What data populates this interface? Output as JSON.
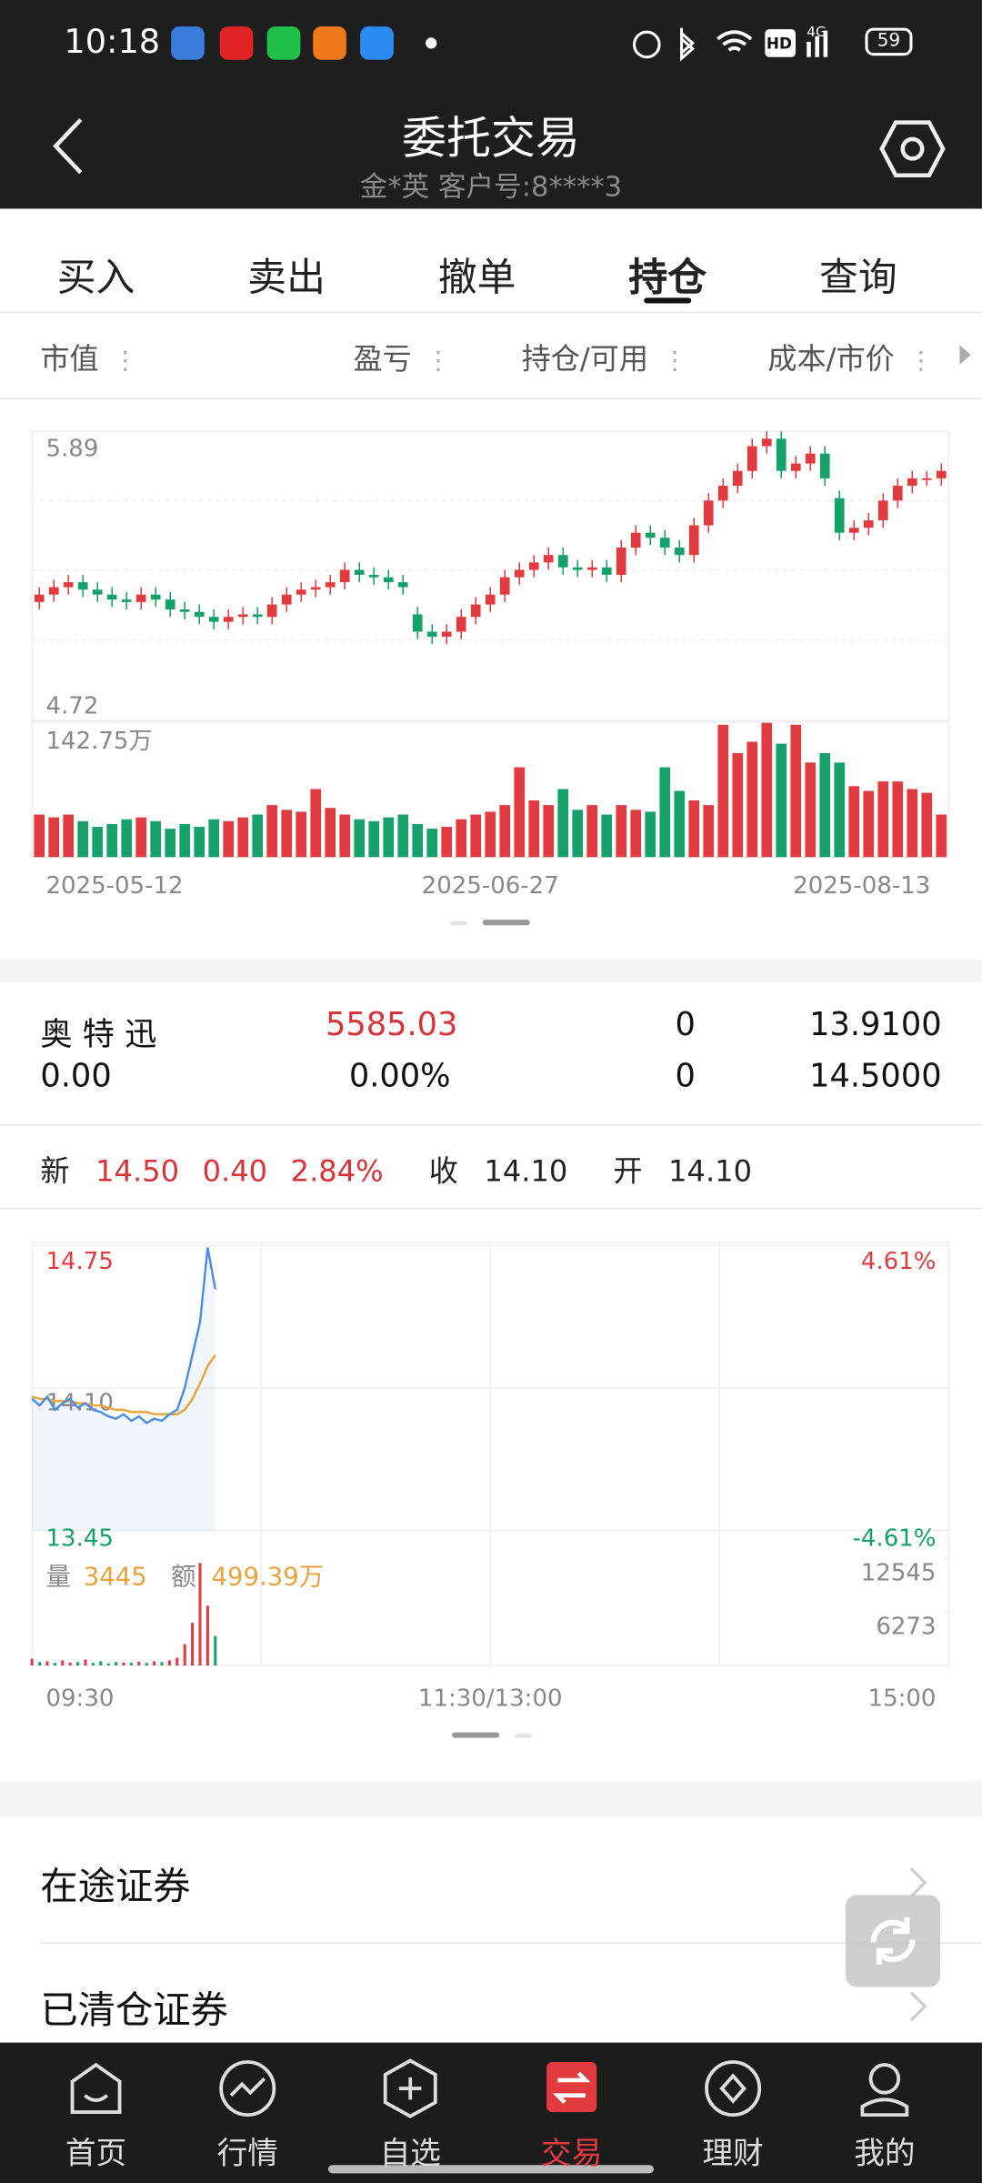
{
  "status_bar": {
    "time": "10:18",
    "hd": "HD",
    "network": "4G",
    "battery": "59"
  },
  "header": {
    "title": "委托交易",
    "subtitle": "金*英 客户号:8****3"
  },
  "tabs": {
    "items": [
      "买入",
      "卖出",
      "撤单",
      "持仓",
      "查询"
    ],
    "active": 3
  },
  "columns": [
    "市值",
    "盈亏",
    "持仓/可用",
    "成本/市价"
  ],
  "kline": {
    "type": "candlestick",
    "up_color": "#e23b3f",
    "down_color": "#16a06a",
    "ylim": [
      4.72,
      5.89
    ],
    "yticks": [
      5.89,
      4.72
    ],
    "open": [
      5.2,
      5.23,
      5.26,
      5.28,
      5.25,
      5.23,
      5.21,
      5.2,
      5.23,
      5.21,
      5.17,
      5.16,
      5.14,
      5.12,
      5.14,
      5.15,
      5.14,
      5.19,
      5.23,
      5.25,
      5.26,
      5.28,
      5.33,
      5.31,
      5.3,
      5.28,
      5.15,
      5.08,
      5.06,
      5.08,
      5.14,
      5.19,
      5.23,
      5.3,
      5.33,
      5.36,
      5.39,
      5.34,
      5.33,
      5.34,
      5.31,
      5.42,
      5.48,
      5.46,
      5.42,
      5.39,
      5.51,
      5.61,
      5.67,
      5.73,
      5.83,
      5.86,
      5.73,
      5.76,
      5.8,
      5.62,
      5.48,
      5.5,
      5.53,
      5.61,
      5.67,
      5.7,
      5.7
    ],
    "high": [
      5.26,
      5.29,
      5.31,
      5.31,
      5.28,
      5.26,
      5.24,
      5.26,
      5.26,
      5.24,
      5.2,
      5.19,
      5.17,
      5.17,
      5.18,
      5.18,
      5.22,
      5.26,
      5.28,
      5.29,
      5.31,
      5.36,
      5.36,
      5.34,
      5.33,
      5.31,
      5.18,
      5.11,
      5.11,
      5.17,
      5.22,
      5.26,
      5.33,
      5.36,
      5.39,
      5.42,
      5.42,
      5.37,
      5.37,
      5.37,
      5.45,
      5.51,
      5.51,
      5.49,
      5.45,
      5.54,
      5.64,
      5.7,
      5.76,
      5.86,
      5.89,
      5.89,
      5.79,
      5.83,
      5.83,
      5.65,
      5.53,
      5.56,
      5.64,
      5.7,
      5.73,
      5.73,
      5.76
    ],
    "low": [
      5.17,
      5.2,
      5.23,
      5.22,
      5.2,
      5.18,
      5.17,
      5.17,
      5.18,
      5.14,
      5.13,
      5.11,
      5.09,
      5.09,
      5.11,
      5.11,
      5.11,
      5.16,
      5.2,
      5.22,
      5.23,
      5.25,
      5.28,
      5.27,
      5.25,
      5.23,
      5.05,
      5.03,
      5.03,
      5.05,
      5.11,
      5.16,
      5.2,
      5.27,
      5.3,
      5.33,
      5.31,
      5.3,
      5.3,
      5.28,
      5.28,
      5.39,
      5.43,
      5.39,
      5.36,
      5.36,
      5.48,
      5.58,
      5.64,
      5.7,
      5.8,
      5.7,
      5.7,
      5.73,
      5.67,
      5.45,
      5.45,
      5.47,
      5.5,
      5.58,
      5.64,
      5.67,
      5.67
    ],
    "close": [
      5.23,
      5.26,
      5.28,
      5.25,
      5.23,
      5.21,
      5.2,
      5.23,
      5.21,
      5.17,
      5.16,
      5.14,
      5.12,
      5.14,
      5.15,
      5.14,
      5.19,
      5.23,
      5.25,
      5.26,
      5.28,
      5.33,
      5.31,
      5.3,
      5.28,
      5.26,
      5.08,
      5.06,
      5.08,
      5.14,
      5.19,
      5.23,
      5.3,
      5.33,
      5.36,
      5.39,
      5.34,
      5.33,
      5.34,
      5.31,
      5.42,
      5.48,
      5.46,
      5.42,
      5.39,
      5.51,
      5.61,
      5.67,
      5.73,
      5.83,
      5.86,
      5.73,
      5.76,
      5.8,
      5.7,
      5.48,
      5.5,
      5.53,
      5.61,
      5.67,
      5.7,
      5.7,
      5.73
    ],
    "volume_ylim": [
      0,
      142.75
    ],
    "volume_ticks": [
      {
        "value": 142.75,
        "label": "142.75万"
      }
    ],
    "volumes": [
      45,
      42,
      45,
      38,
      32,
      35,
      40,
      42,
      38,
      30,
      35,
      32,
      40,
      38,
      42,
      45,
      55,
      50,
      48,
      72,
      52,
      45,
      40,
      38,
      42,
      45,
      35,
      30,
      32,
      40,
      45,
      48,
      55,
      95,
      60,
      55,
      72,
      50,
      55,
      45,
      55,
      50,
      48,
      95,
      70,
      60,
      55,
      140,
      110,
      122,
      142,
      120,
      140,
      100,
      110,
      100,
      75,
      70,
      80,
      80,
      72,
      68,
      45
    ],
    "date_labels": [
      "2025-05-12",
      "2025-06-27",
      "2025-08-13"
    ]
  },
  "holding": {
    "rows": [
      [
        "奥 特 迅",
        "5585.03",
        "0",
        "13.9100"
      ],
      [
        "0.00",
        "0.00%",
        "0",
        "14.5000"
      ]
    ]
  },
  "quote": {
    "new_label": "新",
    "price": "14.50",
    "change": "0.40",
    "change_pct": "2.84%",
    "close_label": "收",
    "close": "14.10",
    "open_label": "开",
    "open": "14.10"
  },
  "intraday": {
    "type": "line",
    "xlim": [
      0,
      240
    ],
    "xticks": [
      {
        "value": 0,
        "label": "09:30"
      },
      {
        "value": 120,
        "label": "11:30/13:00"
      },
      {
        "value": 240,
        "label": "15:00"
      }
    ],
    "ylim": [
      13.45,
      14.75
    ],
    "yticks": [
      {
        "value": 14.75,
        "label": "14.75"
      },
      {
        "value": 14.1,
        "label": "14.10"
      },
      {
        "value": 13.45,
        "label": "13.45"
      }
    ],
    "ytick_colors": [
      "#e23b3f",
      "#888888",
      "#16a06a"
    ],
    "y2lim": [
      -4.61,
      4.61
    ],
    "y2ticks": [
      {
        "value": 4.61,
        "label": "4.61%"
      },
      {
        "value": -4.61,
        "label": "-4.61%"
      }
    ],
    "y2tick_colors": [
      "#e23b3f",
      "#16a06a"
    ],
    "x": [
      0,
      2,
      4,
      6,
      8,
      10,
      12,
      14,
      16,
      18,
      20,
      22,
      24,
      26,
      28,
      30,
      32,
      34,
      36,
      38,
      40,
      42,
      44,
      46,
      48
    ],
    "series": [
      {
        "name": "价格",
        "color": "#4a8fe3",
        "values": [
          14.05,
          14.02,
          14.06,
          14.0,
          14.03,
          14.05,
          14.01,
          14.03,
          14.0,
          13.99,
          13.97,
          13.96,
          13.98,
          13.95,
          13.97,
          13.94,
          13.96,
          13.95,
          13.98,
          14.0,
          14.1,
          14.25,
          14.4,
          14.74,
          14.55
        ]
      },
      {
        "name": "均价",
        "color": "#e8a33c",
        "values": [
          14.06,
          14.05,
          14.05,
          14.04,
          14.04,
          14.04,
          14.03,
          14.03,
          14.02,
          14.02,
          14.01,
          14.0,
          14.0,
          13.99,
          13.99,
          13.99,
          13.98,
          13.98,
          13.98,
          13.98,
          14.0,
          14.05,
          14.12,
          14.2,
          14.25
        ]
      }
    ],
    "volume_ylim": [
      0,
      12545
    ],
    "volume_ticks": [
      12545,
      6273
    ],
    "volumes": [
      800,
      400,
      500,
      300,
      600,
      350,
      400,
      700,
      300,
      500,
      250,
      400,
      350,
      300,
      450,
      300,
      500,
      400,
      600,
      900,
      2500,
      5000,
      12000,
      7000,
      3445
    ],
    "volume_label": "量",
    "volume_value": "3445",
    "amount_label": "额",
    "amount_value": "499.39万"
  },
  "list": [
    "在途证券",
    "已清仓证券"
  ],
  "nav": {
    "items": [
      "首页",
      "行情",
      "自选",
      "交易",
      "理财",
      "我的"
    ],
    "active": 3
  }
}
